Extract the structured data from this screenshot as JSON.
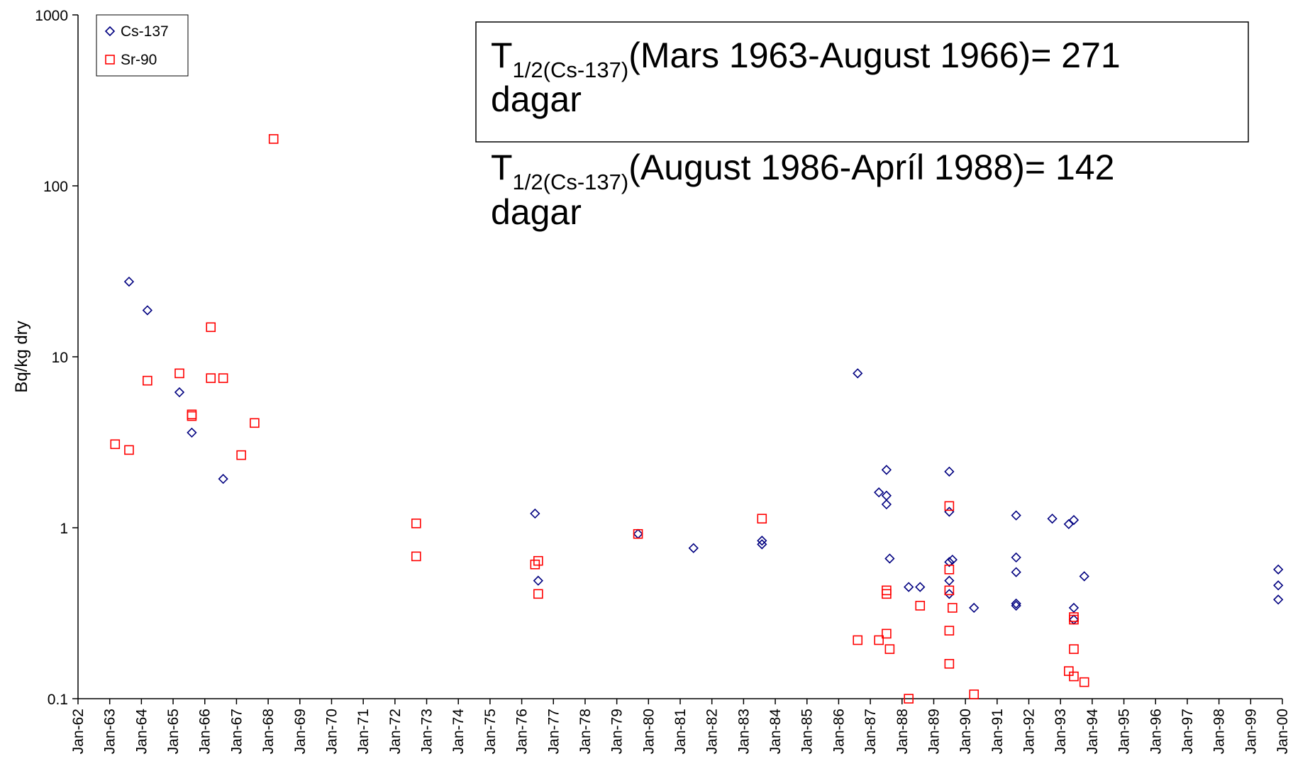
{
  "chart_data": {
    "type": "scatter",
    "ylabel": "Bq/kg dry",
    "log_y": true,
    "ylim": [
      0.1,
      1000
    ],
    "yticks": [
      0.1,
      1,
      10,
      100,
      1000
    ],
    "xlim": [
      1962,
      2000
    ],
    "xticks": [
      {
        "value": 1962,
        "label": "Jan-62"
      },
      {
        "value": 1963,
        "label": "Jan-63"
      },
      {
        "value": 1964,
        "label": "Jan-64"
      },
      {
        "value": 1965,
        "label": "Jan-65"
      },
      {
        "value": 1966,
        "label": "Jan-66"
      },
      {
        "value": 1967,
        "label": "Jan-67"
      },
      {
        "value": 1968,
        "label": "Jan-68"
      },
      {
        "value": 1969,
        "label": "Jan-69"
      },
      {
        "value": 1970,
        "label": "Jan-70"
      },
      {
        "value": 1971,
        "label": "Jan-71"
      },
      {
        "value": 1972,
        "label": "Jan-72"
      },
      {
        "value": 1973,
        "label": "Jan-73"
      },
      {
        "value": 1974,
        "label": "Jan-74"
      },
      {
        "value": 1975,
        "label": "Jan-75"
      },
      {
        "value": 1976,
        "label": "Jan-76"
      },
      {
        "value": 1977,
        "label": "Jan-77"
      },
      {
        "value": 1978,
        "label": "Jan-78"
      },
      {
        "value": 1979,
        "label": "Jan-79"
      },
      {
        "value": 1980,
        "label": "Jan-80"
      },
      {
        "value": 1981,
        "label": "Jan-81"
      },
      {
        "value": 1982,
        "label": "Jan-82"
      },
      {
        "value": 1983,
        "label": "Jan-83"
      },
      {
        "value": 1984,
        "label": "Jan-84"
      },
      {
        "value": 1985,
        "label": "Jan-85"
      },
      {
        "value": 1986,
        "label": "Jan-86"
      },
      {
        "value": 1987,
        "label": "Jan-87"
      },
      {
        "value": 1988,
        "label": "Jan-88"
      },
      {
        "value": 1989,
        "label": "Jan-89"
      },
      {
        "value": 1990,
        "label": "Jan-90"
      },
      {
        "value": 1991,
        "label": "Jan-91"
      },
      {
        "value": 1992,
        "label": "Jan-92"
      },
      {
        "value": 1993,
        "label": "Jan-93"
      },
      {
        "value": 1994,
        "label": "Jan-94"
      },
      {
        "value": 1995,
        "label": "Jan-95"
      },
      {
        "value": 1996,
        "label": "Jan-96"
      },
      {
        "value": 1997,
        "label": "Jan-97"
      },
      {
        "value": 1998,
        "label": "Jan-98"
      },
      {
        "value": 1999,
        "label": "Jan-99"
      },
      {
        "value": 2000,
        "label": "Jan-00"
      }
    ],
    "legend": "top-left",
    "series": [
      {
        "name": "Cs-137",
        "color": "#000080",
        "marker": "diamond",
        "x": [
          1963.61,
          1964.19,
          1965.2,
          1965.59,
          1966.58,
          1976.42,
          1976.52,
          1979.67,
          1981.42,
          1983.58,
          1983.58,
          1986.6,
          1987.27,
          1987.51,
          1987.51,
          1987.51,
          1987.61,
          1988.21,
          1988.57,
          1989.49,
          1989.49,
          1989.49,
          1989.59,
          1989.49,
          1989.49,
          1990.27,
          1991.6,
          1991.6,
          1991.6,
          1991.6,
          1991.6,
          1992.74,
          1993.26,
          1993.42,
          1993.42,
          1993.42,
          1993.75,
          1999.87,
          1999.87,
          1999.87
        ],
        "values": [
          27.5,
          18.7,
          6.2,
          3.6,
          1.93,
          1.21,
          0.49,
          0.92,
          0.76,
          0.84,
          0.8,
          8.0,
          1.61,
          2.18,
          1.54,
          1.37,
          0.66,
          0.45,
          0.45,
          2.13,
          1.24,
          0.63,
          0.65,
          0.49,
          0.41,
          0.34,
          1.18,
          0.67,
          0.55,
          0.36,
          0.35,
          1.13,
          1.05,
          1.11,
          0.34,
          0.29,
          0.52,
          0.57,
          0.46,
          0.38
        ]
      },
      {
        "name": "Sr-90",
        "color": "#ff0000",
        "marker": "square",
        "x": [
          1963.17,
          1963.61,
          1964.19,
          1965.2,
          1965.59,
          1965.59,
          1966.19,
          1966.19,
          1966.58,
          1967.15,
          1967.57,
          1968.17,
          1972.67,
          1972.67,
          1976.42,
          1976.52,
          1976.52,
          1979.67,
          1983.58,
          1986.6,
          1987.27,
          1987.51,
          1987.51,
          1987.51,
          1987.61,
          1988.21,
          1988.57,
          1989.49,
          1989.49,
          1989.49,
          1989.49,
          1989.49,
          1989.59,
          1990.27,
          1993.42,
          1993.42,
          1993.42,
          1993.26,
          1993.42,
          1993.75
        ],
        "values": [
          3.08,
          2.85,
          7.25,
          8.0,
          4.6,
          4.5,
          14.9,
          7.5,
          7.5,
          2.66,
          4.1,
          188,
          1.06,
          0.68,
          0.61,
          0.64,
          0.41,
          0.92,
          1.13,
          0.22,
          0.22,
          0.43,
          0.41,
          0.24,
          0.195,
          0.1,
          0.35,
          1.34,
          0.57,
          0.43,
          0.25,
          0.16,
          0.34,
          0.106,
          0.3,
          0.29,
          0.195,
          0.145,
          0.135,
          0.125
        ]
      }
    ],
    "annotations": [
      {
        "base": "T",
        "subscript": "1/2(Cs-137)",
        "text": "(Mars 1963-August 1966)= 271",
        "line2": "dagar"
      },
      {
        "base": "T",
        "subscript": "1/2(Cs-137)",
        "text": "(August 1986-Apríl 1988)= 142",
        "line2": "dagar"
      }
    ]
  }
}
